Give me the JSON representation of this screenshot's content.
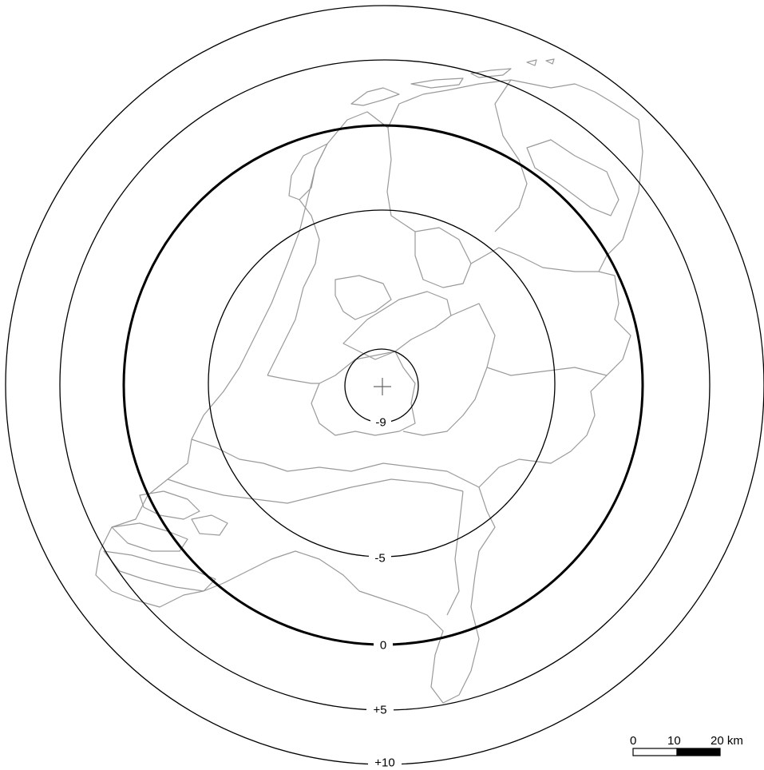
{
  "map": {
    "rings": [
      {
        "label": "-9",
        "value": -9
      },
      {
        "label": "-5",
        "value": -5
      },
      {
        "label": "0",
        "value": 0
      },
      {
        "label": "+5",
        "value": 5
      },
      {
        "label": "+10",
        "value": 10
      }
    ]
  },
  "scale_bar": {
    "tick_0": "0",
    "tick_10": "10",
    "tick_20": "20 km"
  },
  "colors": {
    "boundary": "#9a9a9a",
    "ring": "#000000"
  }
}
